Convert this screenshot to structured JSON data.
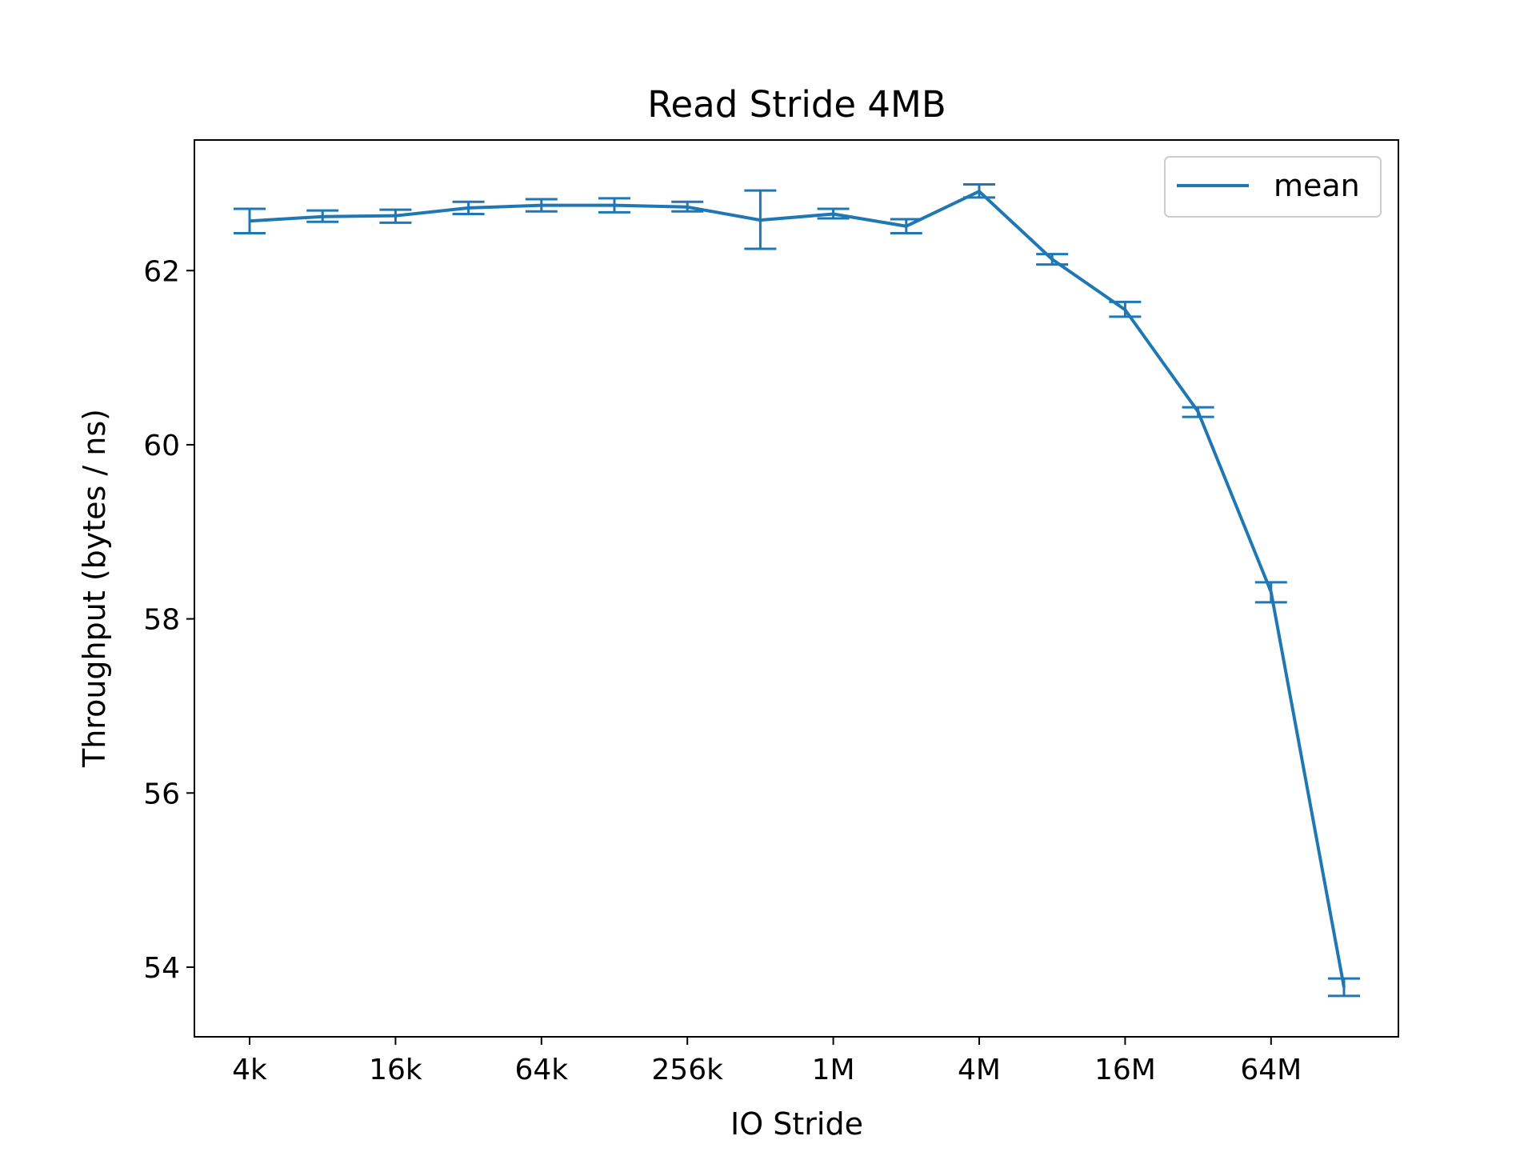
{
  "chart_data": {
    "type": "line",
    "title": "Read Stride 4MB",
    "xlabel": "IO Stride",
    "ylabel": "Throughput (bytes / ns)",
    "x_scale": "log2",
    "x_ticks": [
      "4k",
      "16k",
      "64k",
      "256k",
      "1M",
      "4M",
      "16M",
      "64M"
    ],
    "y_ticks": [
      54,
      56,
      58,
      60,
      62
    ],
    "ylim": [
      53.2,
      63.5
    ],
    "grid": false,
    "legend": {
      "position": "top-right",
      "entries": [
        "mean"
      ]
    },
    "x": [
      "4k",
      "8k",
      "16k",
      "32k",
      "64k",
      "128k",
      "256k",
      "512k",
      "1M",
      "2M",
      "4M",
      "8M",
      "16M",
      "32M",
      "64M",
      "128M"
    ],
    "series": [
      {
        "name": "mean",
        "color": "#1f77b4",
        "values": [
          62.57,
          62.62,
          62.63,
          62.72,
          62.75,
          62.75,
          62.73,
          62.58,
          62.65,
          62.51,
          62.91,
          62.13,
          61.55,
          60.38,
          58.31,
          53.77
        ],
        "error_low": [
          62.43,
          62.56,
          62.55,
          62.65,
          62.68,
          62.67,
          62.68,
          62.25,
          62.6,
          62.43,
          62.84,
          62.07,
          61.47,
          60.32,
          58.19,
          53.67
        ],
        "error_high": [
          62.71,
          62.69,
          62.7,
          62.79,
          62.82,
          62.83,
          62.79,
          62.92,
          62.71,
          62.59,
          62.99,
          62.19,
          61.64,
          60.43,
          58.42,
          53.87
        ]
      }
    ]
  }
}
